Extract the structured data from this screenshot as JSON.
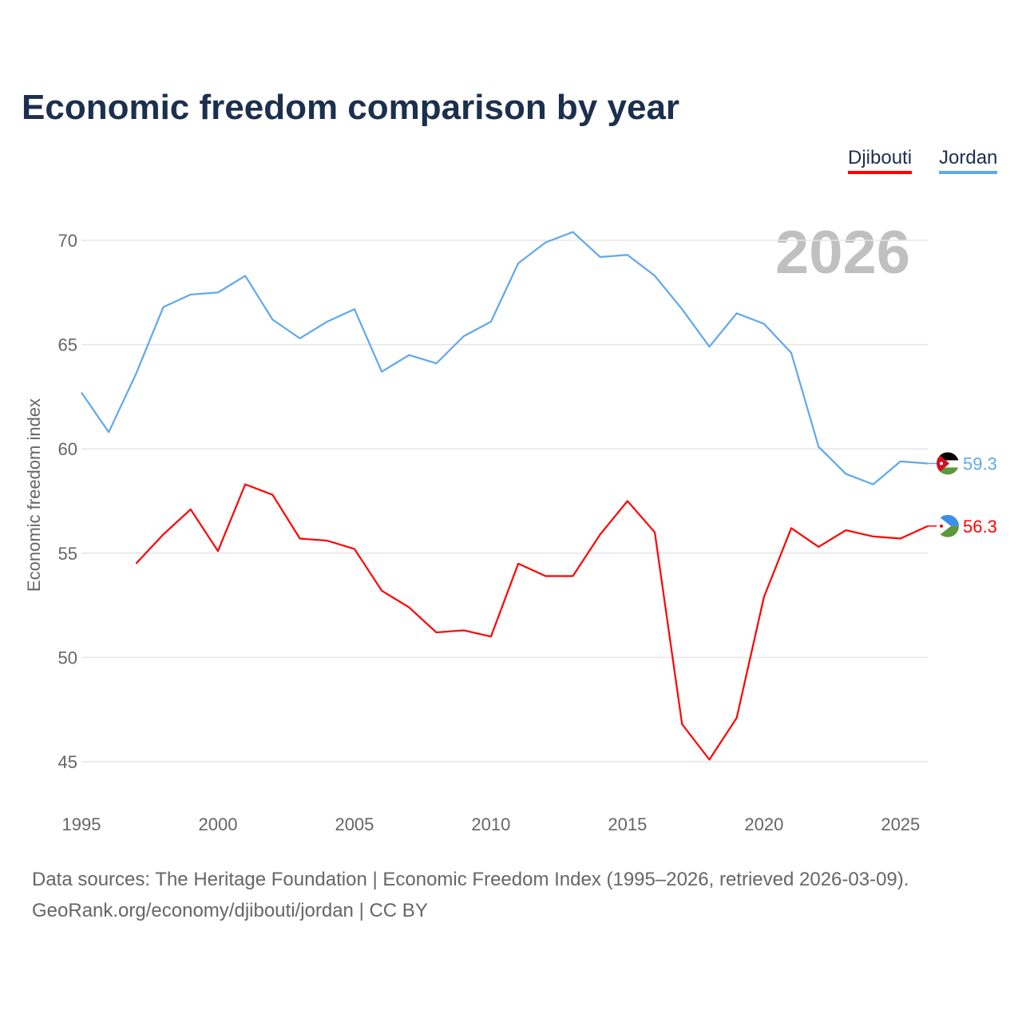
{
  "title": "Economic freedom comparison by year",
  "legend": [
    {
      "label": "Djibouti",
      "color": "#ff0000"
    },
    {
      "label": "Jordan",
      "color": "#5fa8ee"
    }
  ],
  "sources": {
    "line1": "Data sources: The Heritage Foundation | Economic Freedom Index (1995–2026, retrieved 2026-03-09).",
    "line2": "GeoRank.org/economy/djibouti/jordan | CC BY"
  },
  "chart_data": {
    "type": "line",
    "title": "Economic freedom comparison by year",
    "year_watermark": "2026",
    "xlabel": "",
    "ylabel": "Economic freedom index",
    "xlim": [
      1995,
      2026
    ],
    "ylim": [
      45,
      70
    ],
    "xticks": [
      1995,
      2000,
      2005,
      2010,
      2015,
      2020,
      2025
    ],
    "yticks": [
      45,
      50,
      55,
      60,
      65,
      70
    ],
    "grid": true,
    "legend_position": "top-right",
    "series": [
      {
        "name": "Jordan",
        "color": "#5fa8ee",
        "end_label": "59.3",
        "flag": "jordan",
        "x": [
          1995,
          1996,
          1997,
          1998,
          1999,
          2000,
          2001,
          2002,
          2003,
          2004,
          2005,
          2006,
          2007,
          2008,
          2009,
          2010,
          2011,
          2012,
          2013,
          2014,
          2015,
          2016,
          2017,
          2018,
          2019,
          2020,
          2021,
          2022,
          2023,
          2024,
          2025,
          2026
        ],
        "values": [
          62.7,
          60.8,
          63.6,
          66.8,
          67.4,
          67.5,
          68.3,
          66.2,
          65.3,
          66.1,
          66.7,
          63.7,
          64.5,
          64.1,
          65.4,
          66.1,
          68.9,
          69.9,
          70.4,
          69.2,
          69.3,
          68.3,
          66.7,
          64.9,
          66.5,
          66.0,
          64.6,
          60.1,
          58.8,
          58.3,
          59.4,
          59.3
        ]
      },
      {
        "name": "Djibouti",
        "color": "#ff0000",
        "end_label": "56.3",
        "flag": "djibouti",
        "x": [
          1997,
          1998,
          1999,
          2000,
          2001,
          2002,
          2003,
          2004,
          2005,
          2006,
          2007,
          2008,
          2009,
          2010,
          2011,
          2012,
          2013,
          2014,
          2015,
          2016,
          2017,
          2018,
          2019,
          2020,
          2021,
          2022,
          2023,
          2024,
          2025,
          2026
        ],
        "values": [
          54.5,
          55.9,
          57.1,
          55.1,
          58.3,
          57.8,
          55.7,
          55.6,
          55.2,
          53.2,
          52.4,
          51.2,
          51.3,
          51.0,
          54.5,
          53.9,
          53.9,
          55.9,
          57.5,
          56.0,
          46.8,
          45.1,
          47.1,
          52.9,
          56.2,
          55.3,
          56.1,
          55.8,
          55.7,
          56.3
        ]
      }
    ]
  }
}
